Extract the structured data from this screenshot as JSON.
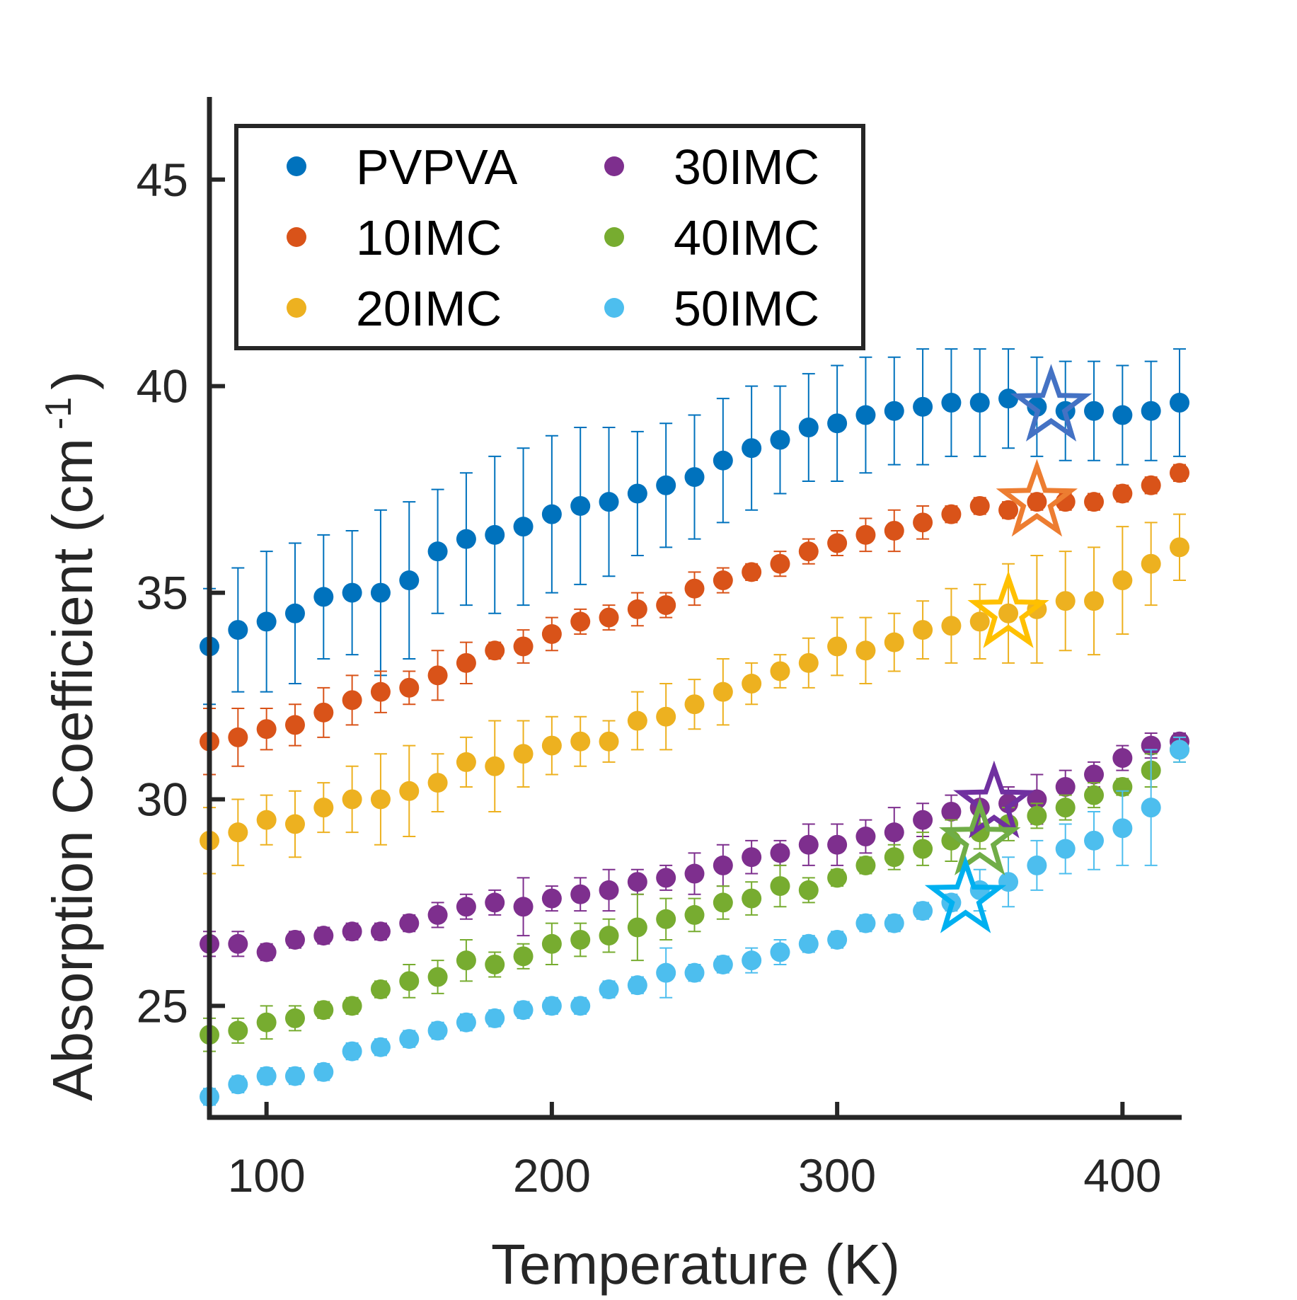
{
  "chart_data": {
    "type": "scatter",
    "xlabel": "Temperature (K)",
    "ylabel_main": "Absorption Coefficient (cm",
    "ylabel_sup": "-1",
    "ylabel_close": ")",
    "xlim": [
      80,
      420
    ],
    "ylim": [
      22.3,
      47
    ],
    "xticks": [
      100,
      200,
      300,
      400
    ],
    "yticks": [
      25,
      30,
      35,
      40,
      45
    ],
    "grid": false,
    "legend_position": "top-left",
    "legend_columns": 2,
    "x": [
      80,
      90,
      100,
      110,
      120,
      130,
      140,
      150,
      160,
      170,
      180,
      190,
      200,
      210,
      220,
      230,
      240,
      250,
      260,
      270,
      280,
      290,
      300,
      310,
      320,
      330,
      340,
      350,
      360,
      370,
      380,
      390,
      400,
      410,
      420
    ],
    "series": [
      {
        "name": "PVPVA",
        "color": "#0072BD",
        "values": [
          33.7,
          34.1,
          34.3,
          34.5,
          34.9,
          35.0,
          35.0,
          35.3,
          36.0,
          36.3,
          36.4,
          36.6,
          36.9,
          37.1,
          37.2,
          37.4,
          37.6,
          37.8,
          38.2,
          38.5,
          38.7,
          39.0,
          39.1,
          39.3,
          39.4,
          39.5,
          39.6,
          39.6,
          39.7,
          39.5,
          39.4,
          39.4,
          39.3,
          39.4,
          39.6
        ],
        "errors": [
          1.4,
          1.5,
          1.7,
          1.7,
          1.5,
          1.5,
          2.0,
          1.9,
          1.5,
          1.6,
          1.9,
          1.9,
          1.9,
          1.9,
          1.8,
          1.5,
          1.5,
          1.5,
          1.5,
          1.5,
          1.3,
          1.3,
          1.4,
          1.4,
          1.3,
          1.4,
          1.3,
          1.3,
          1.2,
          1.2,
          1.2,
          1.2,
          1.2,
          1.2,
          1.3
        ],
        "star": [
          375,
          39.5
        ]
      },
      {
        "name": "10IMC",
        "color": "#D95319",
        "values": [
          31.4,
          31.5,
          31.7,
          31.8,
          32.1,
          32.4,
          32.6,
          32.7,
          33.0,
          33.3,
          33.6,
          33.7,
          34.0,
          34.3,
          34.4,
          34.6,
          34.7,
          35.1,
          35.3,
          35.5,
          35.7,
          36.0,
          36.2,
          36.4,
          36.5,
          36.7,
          36.9,
          37.1,
          37.0,
          37.2,
          37.2,
          37.2,
          37.4,
          37.6,
          37.9
        ],
        "errors": [
          0.8,
          0.7,
          0.5,
          0.5,
          0.6,
          0.6,
          0.5,
          0.4,
          0.6,
          0.5,
          0.2,
          0.4,
          0.4,
          0.3,
          0.3,
          0.4,
          0.3,
          0.4,
          0.3,
          0.2,
          0.3,
          0.3,
          0.3,
          0.4,
          0.5,
          0.4,
          0.2,
          0.2,
          0.2,
          0.2,
          0.2,
          0.2,
          0.2,
          0.2,
          0.2
        ],
        "star": [
          370,
          37.2
        ]
      },
      {
        "name": "20IMC",
        "color": "#EDB120",
        "values": [
          29.0,
          29.2,
          29.5,
          29.4,
          29.8,
          30.0,
          30.0,
          30.2,
          30.4,
          30.9,
          30.8,
          31.1,
          31.3,
          31.4,
          31.4,
          31.9,
          32.0,
          32.3,
          32.6,
          32.8,
          33.1,
          33.3,
          33.7,
          33.6,
          33.8,
          34.1,
          34.2,
          34.3,
          34.5,
          34.6,
          34.8,
          34.8,
          35.3,
          35.7,
          36.1
        ],
        "errors": [
          0.8,
          0.8,
          0.6,
          0.8,
          0.6,
          0.8,
          1.1,
          1.1,
          0.7,
          0.6,
          1.1,
          0.8,
          0.7,
          0.6,
          0.5,
          0.7,
          0.8,
          0.6,
          0.8,
          0.5,
          0.4,
          0.6,
          0.7,
          0.8,
          0.7,
          0.7,
          0.9,
          0.9,
          1.2,
          1.3,
          1.2,
          1.3,
          1.3,
          1.0,
          0.8
        ],
        "star": [
          360,
          34.5
        ]
      },
      {
        "name": "30IMC",
        "color": "#7E2F8E",
        "values": [
          26.5,
          26.5,
          26.3,
          26.6,
          26.7,
          26.8,
          26.8,
          27.0,
          27.2,
          27.4,
          27.5,
          27.4,
          27.6,
          27.7,
          27.8,
          28.0,
          28.1,
          28.2,
          28.4,
          28.6,
          28.7,
          28.9,
          28.9,
          29.1,
          29.2,
          29.5,
          29.7,
          29.8,
          29.9,
          30.0,
          30.3,
          30.6,
          31.0,
          31.3,
          31.4
        ],
        "errors": [
          0.3,
          0.3,
          0.2,
          0.2,
          0.2,
          0.2,
          0.2,
          0.2,
          0.3,
          0.3,
          0.3,
          0.7,
          0.3,
          0.4,
          0.5,
          0.3,
          0.3,
          0.5,
          0.5,
          0.4,
          0.3,
          0.5,
          0.5,
          0.4,
          0.6,
          0.4,
          0.4,
          0.4,
          0.4,
          0.6,
          0.4,
          0.3,
          0.3,
          0.3,
          0.2
        ],
        "star": [
          355,
          29.9
        ]
      },
      {
        "name": "40IMC",
        "color": "#77AC30",
        "values": [
          24.3,
          24.4,
          24.6,
          24.7,
          24.9,
          25.0,
          25.4,
          25.6,
          25.7,
          26.1,
          26.0,
          26.2,
          26.5,
          26.6,
          26.7,
          26.9,
          27.1,
          27.2,
          27.5,
          27.6,
          27.9,
          27.8,
          28.1,
          28.4,
          28.6,
          28.8,
          29.0,
          29.2,
          29.4,
          29.6,
          29.8,
          30.1,
          30.3,
          30.7,
          31.2
        ],
        "errors": [
          0.4,
          0.3,
          0.4,
          0.3,
          0.2,
          0.2,
          0.2,
          0.4,
          0.4,
          0.5,
          0.3,
          0.3,
          0.5,
          0.4,
          0.4,
          0.8,
          0.5,
          0.4,
          0.4,
          0.4,
          0.5,
          0.3,
          0.2,
          0.2,
          0.3,
          0.4,
          0.5,
          0.4,
          0.4,
          0.3,
          0.3,
          0.3,
          0.2,
          0.4,
          0.3
        ],
        "star": [
          350,
          29.0
        ]
      },
      {
        "name": "50IMC",
        "color": "#4DBEEE",
        "values": [
          22.8,
          23.1,
          23.3,
          23.3,
          23.4,
          23.9,
          24.0,
          24.2,
          24.4,
          24.6,
          24.7,
          24.9,
          25.0,
          25.0,
          25.4,
          25.5,
          25.8,
          25.8,
          26.0,
          26.1,
          26.3,
          26.5,
          26.6,
          27.0,
          27.0,
          27.3,
          27.5,
          27.8,
          28.0,
          28.4,
          28.8,
          29.0,
          29.3,
          29.8,
          31.2
        ],
        "errors": [
          0.2,
          0.2,
          0.2,
          0.2,
          0.2,
          0.2,
          0.2,
          0.2,
          0.2,
          0.2,
          0.2,
          0.2,
          0.2,
          0.2,
          0.2,
          0.2,
          0.6,
          0.2,
          0.2,
          0.3,
          0.3,
          0.2,
          0.2,
          0.2,
          0.2,
          0.2,
          0.2,
          0.5,
          0.6,
          0.6,
          0.6,
          0.7,
          0.9,
          1.4,
          0.3
        ],
        "star": [
          345,
          27.6
        ]
      }
    ],
    "star_colors": [
      "#4472C4",
      "#ED7D31",
      "#FFC000",
      "#7030A0",
      "#70AD47",
      "#00B0F0"
    ]
  }
}
